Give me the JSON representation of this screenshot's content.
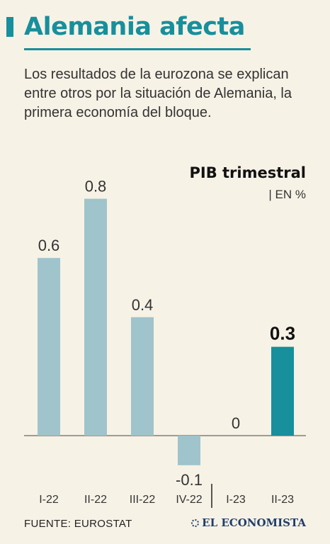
{
  "header": {
    "title": "Alemania afecta",
    "subtitle": "Los resultados de la eurozona se explican entre otros por la situación de Alemania, la primera economía del bloque."
  },
  "chart_data": {
    "type": "bar",
    "title": "PIB trimestral",
    "unit": "| EN %",
    "categories": [
      "I-22",
      "II-22",
      "III-22",
      "IV-22",
      "I-23",
      "II-23"
    ],
    "values": [
      0.6,
      0.8,
      0.4,
      -0.1,
      0,
      0.3
    ],
    "value_labels": [
      "0.6",
      "0.8",
      "0.4",
      "-0.1",
      "0",
      "0.3"
    ],
    "highlight_index": 5,
    "colors": {
      "bar": "#9fc4cb",
      "highlight": "#178f9c",
      "baseline": "#444444"
    },
    "grid": false
  },
  "footer": {
    "source": "FUENTE: EUROSTAT",
    "brand": "EL ECONOMISTA"
  }
}
